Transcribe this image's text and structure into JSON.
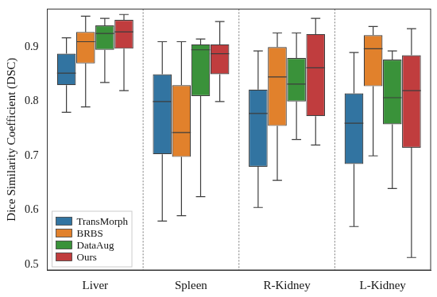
{
  "chart_data": {
    "type": "box",
    "y_label": "Dice Similarity Coefficient (DSC)",
    "categories": [
      "Liver",
      "Spleen",
      "R-Kidney",
      "L-Kidney"
    ],
    "series": [
      {
        "name": "TransMorph",
        "color": "#3274a1",
        "values": [
          {
            "min": 0.78,
            "q1": 0.83,
            "median": 0.852,
            "q3": 0.888,
            "max": 0.917
          },
          {
            "min": 0.58,
            "q1": 0.703,
            "median": 0.8,
            "q3": 0.85,
            "max": 0.91
          },
          {
            "min": 0.605,
            "q1": 0.68,
            "median": 0.778,
            "q3": 0.822,
            "max": 0.893
          },
          {
            "min": 0.57,
            "q1": 0.685,
            "median": 0.76,
            "q3": 0.815,
            "max": 0.89
          }
        ]
      },
      {
        "name": "BRBS",
        "color": "#e1812c",
        "values": [
          {
            "min": 0.79,
            "q1": 0.87,
            "median": 0.91,
            "q3": 0.928,
            "max": 0.957
          },
          {
            "min": 0.59,
            "q1": 0.698,
            "median": 0.743,
            "q3": 0.83,
            "max": 0.91
          },
          {
            "min": 0.655,
            "q1": 0.755,
            "median": 0.845,
            "q3": 0.9,
            "max": 0.926
          },
          {
            "min": 0.7,
            "q1": 0.828,
            "median": 0.897,
            "q3": 0.922,
            "max": 0.938
          }
        ]
      },
      {
        "name": "DataAug",
        "color": "#3a923a",
        "values": [
          {
            "min": 0.835,
            "q1": 0.895,
            "median": 0.925,
            "q3": 0.94,
            "max": 0.953
          },
          {
            "min": 0.625,
            "q1": 0.81,
            "median": 0.895,
            "q3": 0.905,
            "max": 0.915
          },
          {
            "min": 0.73,
            "q1": 0.8,
            "median": 0.832,
            "q3": 0.88,
            "max": 0.926
          },
          {
            "min": 0.64,
            "q1": 0.758,
            "median": 0.807,
            "q3": 0.877,
            "max": 0.893
          }
        ]
      },
      {
        "name": "Ours",
        "color": "#c03d3e",
        "values": [
          {
            "min": 0.82,
            "q1": 0.897,
            "median": 0.928,
            "q3": 0.95,
            "max": 0.96
          },
          {
            "min": 0.8,
            "q1": 0.85,
            "median": 0.888,
            "q3": 0.905,
            "max": 0.947
          },
          {
            "min": 0.72,
            "q1": 0.773,
            "median": 0.862,
            "q3": 0.924,
            "max": 0.953
          },
          {
            "min": 0.513,
            "q1": 0.715,
            "median": 0.82,
            "q3": 0.885,
            "max": 0.934
          }
        ]
      }
    ],
    "ylim": [
      0.49,
      0.97
    ],
    "yticks": [
      0.5,
      0.6,
      0.7,
      0.8,
      0.9
    ],
    "grid": false,
    "legend": "lower left"
  }
}
